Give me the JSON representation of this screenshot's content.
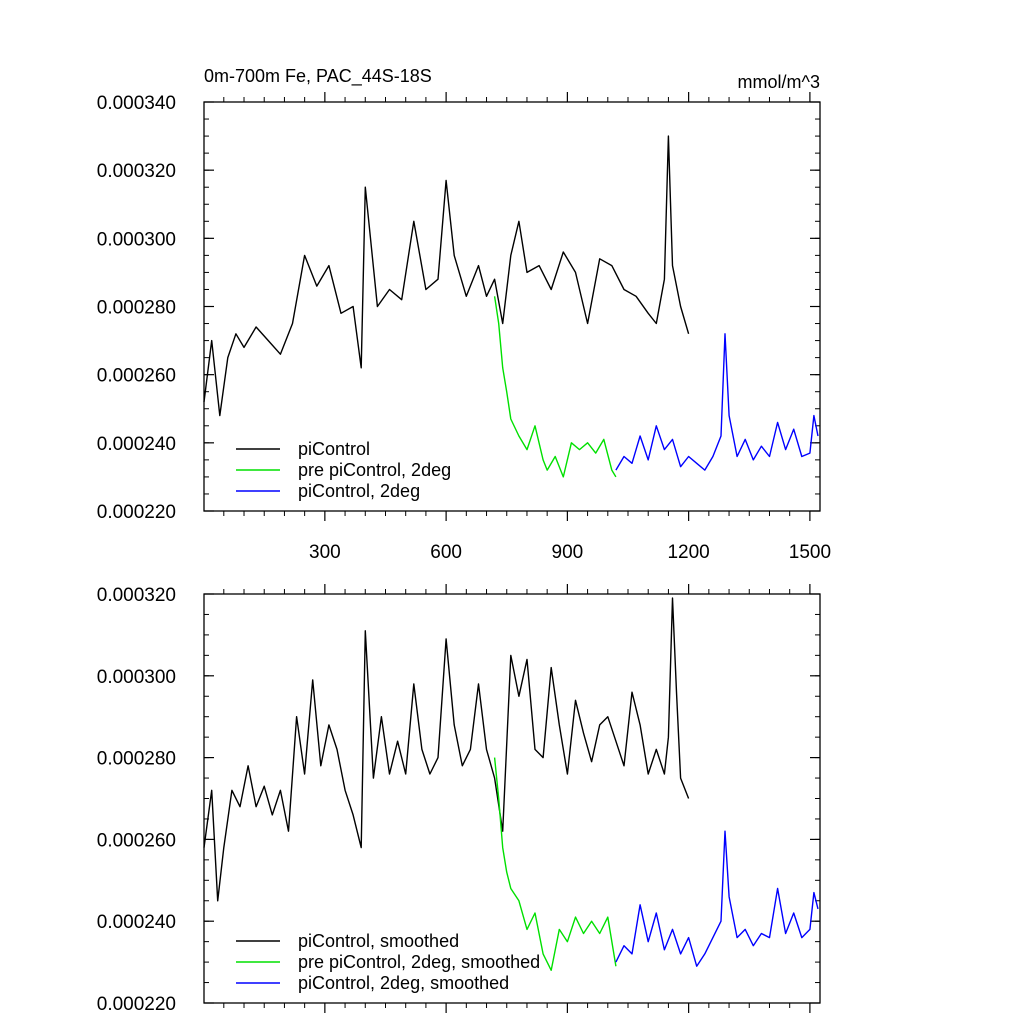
{
  "chart_data": [
    {
      "type": "line",
      "title": "0m-700m Fe, PAC_44S-18S",
      "units": "mmol/m^3",
      "xlabel": "",
      "ylabel": "",
      "xlim": [
        1,
        1525
      ],
      "ylim": [
        0.00022,
        0.00034
      ],
      "x_ticks": [
        300,
        600,
        900,
        1200,
        1500
      ],
      "x_tick_labels": [
        "300",
        "600",
        "900",
        "1200",
        "1500"
      ],
      "y_ticks": [
        0.00022,
        0.00024,
        0.00026,
        0.00028,
        0.0003,
        0.00032,
        0.00034
      ],
      "y_tick_labels": [
        "0.000220",
        "0.000240",
        "0.000260",
        "0.000280",
        "0.000300",
        "0.000320",
        "0.000340"
      ],
      "legend": "bottom-left",
      "series": [
        {
          "name": "piControl",
          "color": "#000000",
          "x": [
            1,
            20,
            40,
            60,
            80,
            100,
            130,
            160,
            190,
            220,
            250,
            280,
            310,
            340,
            370,
            390,
            400,
            430,
            460,
            490,
            520,
            550,
            580,
            600,
            620,
            650,
            680,
            700,
            720,
            740,
            760,
            780,
            800,
            830,
            860,
            890,
            920,
            950,
            980,
            1010,
            1040,
            1070,
            1100,
            1120,
            1140,
            1150,
            1160,
            1180,
            1200
          ],
          "values": [
            0.000252,
            0.00027,
            0.000248,
            0.000265,
            0.000272,
            0.000268,
            0.000274,
            0.00027,
            0.000266,
            0.000275,
            0.000295,
            0.000286,
            0.000292,
            0.000278,
            0.00028,
            0.000262,
            0.000315,
            0.00028,
            0.000285,
            0.000282,
            0.000305,
            0.000285,
            0.000288,
            0.000317,
            0.000295,
            0.000283,
            0.000292,
            0.000283,
            0.000288,
            0.000275,
            0.000295,
            0.000305,
            0.00029,
            0.000292,
            0.000285,
            0.000296,
            0.00029,
            0.000275,
            0.000294,
            0.000292,
            0.000285,
            0.000283,
            0.000278,
            0.000275,
            0.000288,
            0.00033,
            0.000292,
            0.00028,
            0.000272
          ]
        },
        {
          "name": "pre piControl, 2deg",
          "color": "#00e000",
          "x": [
            720,
            730,
            740,
            750,
            760,
            780,
            800,
            820,
            840,
            850,
            870,
            890,
            910,
            930,
            950,
            970,
            990,
            1010,
            1020
          ],
          "values": [
            0.000283,
            0.000275,
            0.000262,
            0.000255,
            0.000247,
            0.000242,
            0.000238,
            0.000245,
            0.000235,
            0.000232,
            0.000236,
            0.00023,
            0.00024,
            0.000238,
            0.00024,
            0.000237,
            0.000241,
            0.000232,
            0.00023
          ]
        },
        {
          "name": "piControl, 2deg",
          "color": "#0000ff",
          "x": [
            1020,
            1040,
            1060,
            1080,
            1100,
            1120,
            1140,
            1160,
            1180,
            1200,
            1220,
            1240,
            1260,
            1280,
            1290,
            1300,
            1320,
            1340,
            1360,
            1380,
            1400,
            1420,
            1440,
            1460,
            1480,
            1500,
            1510,
            1520
          ],
          "values": [
            0.000232,
            0.000236,
            0.000234,
            0.000242,
            0.000235,
            0.000245,
            0.000238,
            0.000241,
            0.000233,
            0.000236,
            0.000234,
            0.000232,
            0.000236,
            0.000242,
            0.000272,
            0.000248,
            0.000236,
            0.000241,
            0.000235,
            0.000239,
            0.000236,
            0.000246,
            0.000238,
            0.000244,
            0.000236,
            0.000237,
            0.000248,
            0.000242
          ]
        }
      ]
    },
    {
      "type": "line",
      "title": "",
      "xlabel": "",
      "ylabel": "",
      "xlim": [
        1,
        1525
      ],
      "ylim": [
        0.00022,
        0.00032
      ],
      "x_ticks": [
        300,
        600,
        900,
        1200,
        1500
      ],
      "x_tick_labels": [],
      "y_ticks": [
        0.00022,
        0.00024,
        0.00026,
        0.00028,
        0.0003,
        0.00032
      ],
      "y_tick_labels": [
        "0.000220",
        "0.000240",
        "0.000260",
        "0.000280",
        "0.000300",
        "0.000320"
      ],
      "legend": "bottom-left",
      "series": [
        {
          "name": "piControl, smoothed",
          "color": "#000000",
          "x": [
            1,
            20,
            35,
            50,
            70,
            90,
            110,
            130,
            150,
            170,
            190,
            210,
            230,
            250,
            270,
            290,
            310,
            330,
            350,
            370,
            390,
            400,
            420,
            440,
            460,
            480,
            500,
            520,
            540,
            560,
            580,
            600,
            620,
            640,
            660,
            680,
            700,
            720,
            740,
            760,
            780,
            800,
            820,
            840,
            860,
            880,
            900,
            920,
            940,
            960,
            980,
            1000,
            1020,
            1040,
            1060,
            1080,
            1100,
            1120,
            1140,
            1150,
            1160,
            1170,
            1180,
            1200
          ],
          "values": [
            0.000258,
            0.000272,
            0.000245,
            0.000258,
            0.000272,
            0.000268,
            0.000278,
            0.000268,
            0.000273,
            0.000266,
            0.000272,
            0.000262,
            0.00029,
            0.000276,
            0.000299,
            0.000278,
            0.000288,
            0.000282,
            0.000272,
            0.000266,
            0.000258,
            0.000311,
            0.000275,
            0.00029,
            0.000276,
            0.000284,
            0.000276,
            0.000298,
            0.000282,
            0.000276,
            0.00028,
            0.000309,
            0.000288,
            0.000278,
            0.000282,
            0.000298,
            0.000282,
            0.000275,
            0.000262,
            0.000305,
            0.000295,
            0.000304,
            0.000282,
            0.00028,
            0.000302,
            0.000288,
            0.000276,
            0.000294,
            0.000286,
            0.000279,
            0.000288,
            0.00029,
            0.000284,
            0.000278,
            0.000296,
            0.000288,
            0.000276,
            0.000282,
            0.000276,
            0.000285,
            0.000319,
            0.000296,
            0.000275,
            0.00027
          ]
        },
        {
          "name": "pre piControl, 2deg, smoothed",
          "color": "#00e000",
          "x": [
            720,
            730,
            740,
            750,
            760,
            780,
            800,
            820,
            840,
            860,
            880,
            900,
            920,
            940,
            960,
            980,
            1000,
            1020
          ],
          "values": [
            0.00028,
            0.00027,
            0.000258,
            0.000252,
            0.000248,
            0.000245,
            0.000238,
            0.000242,
            0.000232,
            0.000228,
            0.000238,
            0.000235,
            0.000241,
            0.000237,
            0.00024,
            0.000237,
            0.000241,
            0.000229
          ]
        },
        {
          "name": "piControl, 2deg, smoothed",
          "color": "#0000ff",
          "x": [
            1020,
            1040,
            1060,
            1080,
            1100,
            1120,
            1140,
            1160,
            1180,
            1200,
            1220,
            1240,
            1260,
            1280,
            1290,
            1300,
            1320,
            1340,
            1360,
            1380,
            1400,
            1420,
            1440,
            1460,
            1480,
            1500,
            1510,
            1520
          ],
          "values": [
            0.00023,
            0.000234,
            0.000232,
            0.000244,
            0.000235,
            0.000242,
            0.000233,
            0.000238,
            0.000232,
            0.000236,
            0.000229,
            0.000232,
            0.000236,
            0.00024,
            0.000262,
            0.000246,
            0.000236,
            0.000238,
            0.000234,
            0.000237,
            0.000236,
            0.000248,
            0.000237,
            0.000242,
            0.000236,
            0.000238,
            0.000247,
            0.000243
          ]
        }
      ]
    }
  ]
}
